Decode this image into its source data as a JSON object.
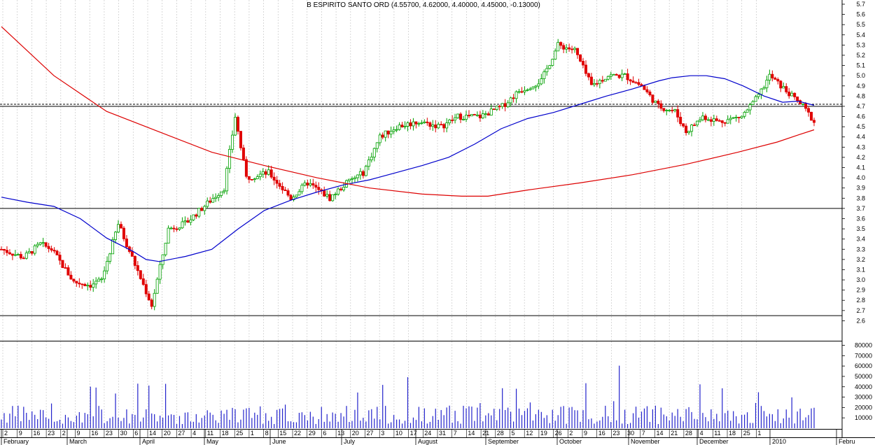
{
  "chart_data": {
    "type": "candlestick",
    "title": "B ESPIRITO SANTO ORD (4.55700, 4.62000, 4.40000, 4.45000, -0.13000)",
    "price_axis": {
      "ylim": [
        2.55,
        5.75
      ],
      "ticks": [
        "2.6",
        "2.7",
        "2.8",
        "2.9",
        "3.0",
        "3.1",
        "3.2",
        "3.3",
        "3.4",
        "3.5",
        "3.6",
        "3.7",
        "3.8",
        "3.9",
        "4.0",
        "4.1",
        "4.2",
        "4.3",
        "4.4",
        "4.5",
        "4.6",
        "4.7",
        "4.8",
        "4.9",
        "5.0",
        "5.1",
        "5.2",
        "5.3",
        "5.4",
        "5.5",
        "5.6",
        "5.7"
      ]
    },
    "volume_axis": {
      "ylim": [
        0,
        82000
      ],
      "ticks": [
        "10000",
        "20000",
        "30000",
        "40000",
        "50000",
        "60000",
        "70000",
        "80000"
      ]
    },
    "date_ticks": [
      "2",
      "9",
      "16",
      "23",
      "2",
      "9",
      "16",
      "23",
      "30",
      "6",
      "14",
      "20",
      "27",
      "4",
      "11",
      "18",
      "25",
      "1",
      "8",
      "15",
      "22",
      "29",
      "6",
      "13",
      "20",
      "27",
      "3",
      "10",
      "17",
      "24",
      "31",
      "7",
      "14",
      "21",
      "28",
      "5",
      "12",
      "19",
      "26",
      "2",
      "9",
      "16",
      "23",
      "30",
      "7",
      "14",
      "21",
      "28",
      "4",
      "11",
      "18",
      "25",
      "1"
    ],
    "months": [
      "February",
      "March",
      "April",
      "May",
      "June",
      "July",
      "August",
      "September",
      "October",
      "November",
      "December",
      "2010",
      "Febru"
    ],
    "horizontal_lines": [
      4.7,
      3.7,
      2.65
    ],
    "dashed_line": 4.72,
    "moving_averages": [
      {
        "color": "#0000cc",
        "points": [
          [
            0,
            3.81
          ],
          [
            10,
            3.76
          ],
          [
            20,
            3.72
          ],
          [
            30,
            3.6
          ],
          [
            40,
            3.41
          ],
          [
            50,
            3.28
          ],
          [
            55,
            3.2
          ],
          [
            60,
            3.18
          ],
          [
            70,
            3.23
          ],
          [
            80,
            3.3
          ],
          [
            90,
            3.5
          ],
          [
            100,
            3.68
          ],
          [
            110,
            3.78
          ],
          [
            120,
            3.86
          ],
          [
            130,
            3.93
          ],
          [
            140,
            3.98
          ],
          [
            150,
            4.05
          ],
          [
            160,
            4.12
          ],
          [
            170,
            4.2
          ],
          [
            180,
            4.33
          ],
          [
            190,
            4.48
          ],
          [
            200,
            4.58
          ],
          [
            210,
            4.64
          ],
          [
            220,
            4.72
          ],
          [
            230,
            4.8
          ],
          [
            240,
            4.87
          ],
          [
            250,
            4.95
          ],
          [
            255,
            4.98
          ],
          [
            262,
            5.0
          ],
          [
            268,
            5.0
          ],
          [
            275,
            4.97
          ],
          [
            282,
            4.9
          ],
          [
            290,
            4.8
          ],
          [
            297,
            4.74
          ],
          [
            303,
            4.75
          ],
          [
            309,
            4.71
          ]
        ]
      },
      {
        "color": "#dd0000",
        "points": [
          [
            0,
            5.48
          ],
          [
            20,
            5.0
          ],
          [
            40,
            4.65
          ],
          [
            60,
            4.45
          ],
          [
            80,
            4.25
          ],
          [
            100,
            4.12
          ],
          [
            120,
            4.0
          ],
          [
            140,
            3.9
          ],
          [
            160,
            3.84
          ],
          [
            175,
            3.82
          ],
          [
            185,
            3.82
          ],
          [
            200,
            3.88
          ],
          [
            220,
            3.95
          ],
          [
            240,
            4.03
          ],
          [
            260,
            4.13
          ],
          [
            280,
            4.25
          ],
          [
            295,
            4.35
          ],
          [
            303,
            4.42
          ],
          [
            309,
            4.47
          ]
        ]
      }
    ]
  }
}
